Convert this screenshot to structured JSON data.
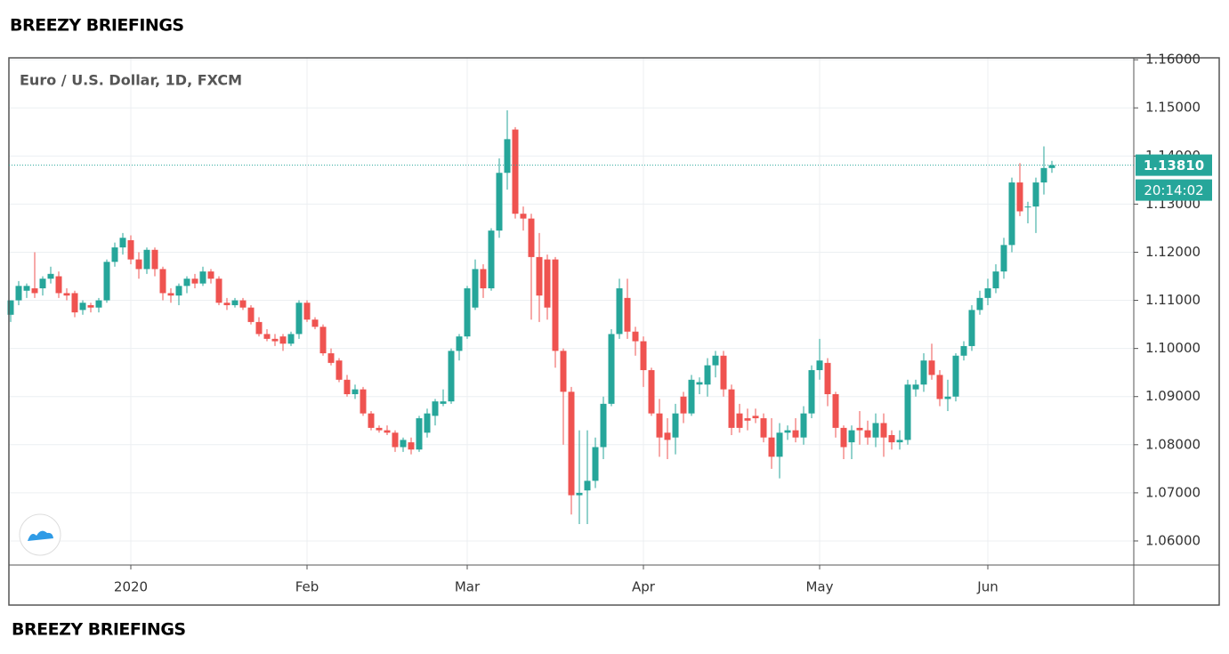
{
  "header": "BREEZY BRIEFINGS",
  "footer": "BREEZY BRIEFINGS",
  "chart_data": {
    "type": "candlestick",
    "title": "Euro / U.S. Dollar, 1D, FXCM",
    "up_color": "#26a69a",
    "down_color": "#ef5350",
    "grid": true,
    "ylim": [
      1.055,
      1.1604
    ],
    "yticks": [
      {
        "value": 1.06,
        "label": "1.06000"
      },
      {
        "value": 1.07,
        "label": "1.07000"
      },
      {
        "value": 1.08,
        "label": "1.08000"
      },
      {
        "value": 1.09,
        "label": "1.09000"
      },
      {
        "value": 1.1,
        "label": "1.10000"
      },
      {
        "value": 1.11,
        "label": "1.11000"
      },
      {
        "value": 1.12,
        "label": "1.12000"
      },
      {
        "value": 1.13,
        "label": "1.13000"
      },
      {
        "value": 1.14,
        "label": "1.14000"
      },
      {
        "value": 1.15,
        "label": "1.15000"
      },
      {
        "value": 1.16,
        "label": "1.16000"
      }
    ],
    "last_price": {
      "value": 1.1381,
      "label": "1.13810"
    },
    "countdown": "20:14:02",
    "categories": [
      null,
      null,
      null,
      null,
      null,
      null,
      null,
      null,
      null,
      null,
      null,
      null,
      null,
      null,
      null,
      "2020",
      null,
      null,
      null,
      null,
      null,
      null,
      null,
      null,
      null,
      null,
      null,
      null,
      null,
      null,
      null,
      null,
      null,
      null,
      null,
      null,
      null,
      "Feb",
      null,
      null,
      null,
      null,
      null,
      null,
      null,
      null,
      null,
      null,
      null,
      null,
      null,
      null,
      null,
      null,
      null,
      null,
      null,
      "Mar",
      null,
      null,
      null,
      null,
      null,
      null,
      null,
      null,
      null,
      null,
      null,
      null,
      null,
      null,
      null,
      null,
      null,
      null,
      null,
      null,
      null,
      "Apr",
      null,
      null,
      null,
      null,
      null,
      null,
      null,
      null,
      null,
      null,
      null,
      null,
      null,
      null,
      null,
      null,
      null,
      null,
      null,
      null,
      null,
      "May",
      null,
      null,
      null,
      null,
      null,
      null,
      null,
      null,
      null,
      null,
      null,
      null,
      null,
      null,
      null,
      null,
      null,
      null,
      null,
      null,
      "Jun",
      null,
      null,
      null,
      null,
      null,
      null,
      null,
      null
    ],
    "open": [
      1.107,
      1.11,
      1.112,
      1.1125,
      1.1125,
      1.1145,
      1.115,
      1.1115,
      1.1115,
      1.108,
      1.109,
      1.1085,
      1.11,
      1.118,
      1.121,
      1.1225,
      1.1185,
      1.1165,
      1.1205,
      1.1165,
      1.1115,
      1.111,
      1.113,
      1.1145,
      1.1135,
      1.116,
      1.1145,
      1.1095,
      1.109,
      1.11,
      1.1085,
      1.1055,
      1.103,
      1.102,
      1.1025,
      1.101,
      1.103,
      1.1095,
      1.106,
      1.1045,
      1.099,
      1.0975,
      1.0935,
      1.0905,
      1.0915,
      1.0865,
      1.0835,
      1.083,
      1.0825,
      1.0795,
      1.0805,
      1.079,
      1.0825,
      1.086,
      1.0885,
      1.089,
      1.0995,
      1.1025,
      1.1085,
      1.1165,
      1.1125,
      1.1245,
      1.1365,
      1.1455,
      1.128,
      1.127,
      1.119,
      1.1185,
      1.1185,
      1.0995,
      1.091,
      1.0695,
      1.0705,
      1.0725,
      1.0795,
      1.0885,
      1.103,
      1.1105,
      1.1035,
      1.1015,
      1.0955,
      1.0865,
      1.0825,
      1.0815,
      1.09,
      1.0865,
      1.0925,
      1.0925,
      1.0965,
      1.0985,
      1.0915,
      1.0865,
      1.0855,
      1.086,
      1.0855,
      1.0815,
      1.0775,
      1.0825,
      1.083,
      1.0815,
      1.0865,
      1.0955,
      1.097,
      1.0905,
      1.0835,
      1.0805,
      1.0835,
      1.083,
      1.0815,
      1.0845,
      1.082,
      1.0805,
      1.081,
      1.0915,
      1.0925,
      1.0975,
      1.0945,
      1.0895,
      1.09,
      1.0985,
      1.1005,
      1.108,
      1.1105,
      1.1125,
      1.116,
      1.1215,
      1.1345,
      1.1295,
      1.1295,
      1.1345,
      1.1375
    ],
    "high": [
      1.11,
      1.114,
      1.1135,
      1.12,
      1.115,
      1.117,
      1.116,
      1.1125,
      1.112,
      1.11,
      1.1095,
      1.1105,
      1.1185,
      1.122,
      1.124,
      1.1235,
      1.12,
      1.121,
      1.121,
      1.117,
      1.1125,
      1.1135,
      1.115,
      1.1155,
      1.117,
      1.1165,
      1.115,
      1.1105,
      1.1105,
      1.1105,
      1.109,
      1.1065,
      1.104,
      1.103,
      1.103,
      1.1035,
      1.11,
      1.11,
      1.1065,
      1.105,
      1.1,
      1.098,
      1.0945,
      1.0925,
      1.092,
      1.087,
      1.084,
      1.084,
      1.083,
      1.0815,
      1.0815,
      1.086,
      1.0875,
      1.0895,
      1.0915,
      1.1,
      1.103,
      1.113,
      1.1185,
      1.1175,
      1.125,
      1.1395,
      1.1495,
      1.146,
      1.1295,
      1.128,
      1.124,
      1.1195,
      1.119,
      1.1,
      1.092,
      1.083,
      1.083,
      1.0815,
      1.09,
      1.104,
      1.1145,
      1.1145,
      1.1045,
      1.1025,
      1.096,
      1.0895,
      1.0855,
      1.0885,
      1.091,
      1.0945,
      1.094,
      1.098,
      1.0995,
      1.0995,
      1.0925,
      1.0885,
      1.0875,
      1.0875,
      1.0865,
      1.0855,
      1.0845,
      1.084,
      1.0855,
      1.088,
      1.0965,
      1.102,
      1.098,
      1.091,
      1.084,
      1.084,
      1.087,
      1.085,
      1.0865,
      1.0865,
      1.083,
      1.083,
      1.0935,
      1.0935,
      1.099,
      1.101,
      1.0955,
      1.0935,
      1.099,
      1.1015,
      1.109,
      1.112,
      1.1145,
      1.1175,
      1.123,
      1.1355,
      1.1385,
      1.1305,
      1.1355,
      1.142,
      1.139
    ],
    "low": [
      1.1055,
      1.109,
      1.1105,
      1.1105,
      1.111,
      1.1135,
      1.1105,
      1.11,
      1.1065,
      1.107,
      1.1075,
      1.1075,
      1.1095,
      1.117,
      1.1195,
      1.1175,
      1.1145,
      1.1155,
      1.115,
      1.11,
      1.1095,
      1.109,
      1.1115,
      1.1125,
      1.113,
      1.1135,
      1.109,
      1.108,
      1.1085,
      1.108,
      1.105,
      1.1025,
      1.1015,
      1.1005,
      1.0995,
      1.1005,
      1.102,
      1.1055,
      1.104,
      1.0985,
      1.0965,
      1.093,
      1.09,
      1.0895,
      1.086,
      1.083,
      1.0825,
      1.082,
      1.0785,
      1.0785,
      1.078,
      1.0785,
      1.0815,
      1.084,
      1.088,
      1.0885,
      1.0975,
      1.102,
      1.108,
      1.1105,
      1.112,
      1.123,
      1.133,
      1.127,
      1.1245,
      1.106,
      1.1055,
      1.106,
      1.096,
      1.08,
      1.0655,
      1.0635,
      1.0635,
      1.071,
      1.077,
      1.088,
      1.102,
      1.102,
      1.0985,
      1.092,
      1.086,
      1.0775,
      1.077,
      1.078,
      1.0845,
      1.086,
      1.0905,
      1.09,
      1.094,
      1.09,
      1.082,
      1.0825,
      1.083,
      1.0845,
      1.0805,
      1.075,
      1.073,
      1.081,
      1.0805,
      1.08,
      1.0855,
      1.0935,
      1.088,
      1.0815,
      1.077,
      1.077,
      1.08,
      1.08,
      1.0795,
      1.0775,
      1.079,
      1.079,
      1.08,
      1.09,
      1.091,
      1.0935,
      1.088,
      1.087,
      1.089,
      1.0975,
      1.0995,
      1.107,
      1.109,
      1.1115,
      1.1145,
      1.12,
      1.1275,
      1.126,
      1.124,
      1.132,
      1.1365
    ],
    "close": [
      1.11,
      1.113,
      1.113,
      1.1115,
      1.1145,
      1.1155,
      1.1115,
      1.111,
      1.1075,
      1.1095,
      1.1085,
      1.11,
      1.118,
      1.121,
      1.123,
      1.1185,
      1.1165,
      1.1205,
      1.1165,
      1.1115,
      1.111,
      1.113,
      1.1145,
      1.1135,
      1.116,
      1.1145,
      1.1095,
      1.109,
      1.11,
      1.1085,
      1.1055,
      1.103,
      1.102,
      1.1015,
      1.101,
      1.103,
      1.1095,
      1.106,
      1.1045,
      1.099,
      1.097,
      1.0935,
      1.0905,
      1.0915,
      1.0865,
      1.0835,
      1.083,
      1.0825,
      1.0795,
      1.081,
      1.079,
      1.0855,
      1.0865,
      1.089,
      1.089,
      1.0995,
      1.1025,
      1.1125,
      1.1165,
      1.1125,
      1.1245,
      1.1365,
      1.1435,
      1.128,
      1.127,
      1.119,
      1.111,
      1.1085,
      1.0995,
      1.091,
      1.0695,
      1.07,
      1.0725,
      1.0795,
      1.0885,
      1.103,
      1.1125,
      1.1035,
      1.1015,
      1.0955,
      1.0865,
      1.0815,
      1.081,
      1.0865,
      1.0865,
      1.0935,
      1.093,
      1.0965,
      1.0985,
      1.0915,
      1.0835,
      1.0835,
      1.085,
      1.0855,
      1.0815,
      1.0775,
      1.0825,
      1.083,
      1.0815,
      1.0865,
      1.0955,
      1.0975,
      1.0905,
      1.0835,
      1.0795,
      1.083,
      1.083,
      1.0815,
      1.0845,
      1.0815,
      1.0805,
      1.081,
      1.0925,
      1.0925,
      1.0975,
      1.0945,
      1.0895,
      1.09,
      1.0985,
      1.1005,
      1.108,
      1.1105,
      1.1125,
      1.116,
      1.1215,
      1.1345,
      1.1285,
      1.1295,
      1.1345,
      1.1375,
      1.1381
    ]
  }
}
